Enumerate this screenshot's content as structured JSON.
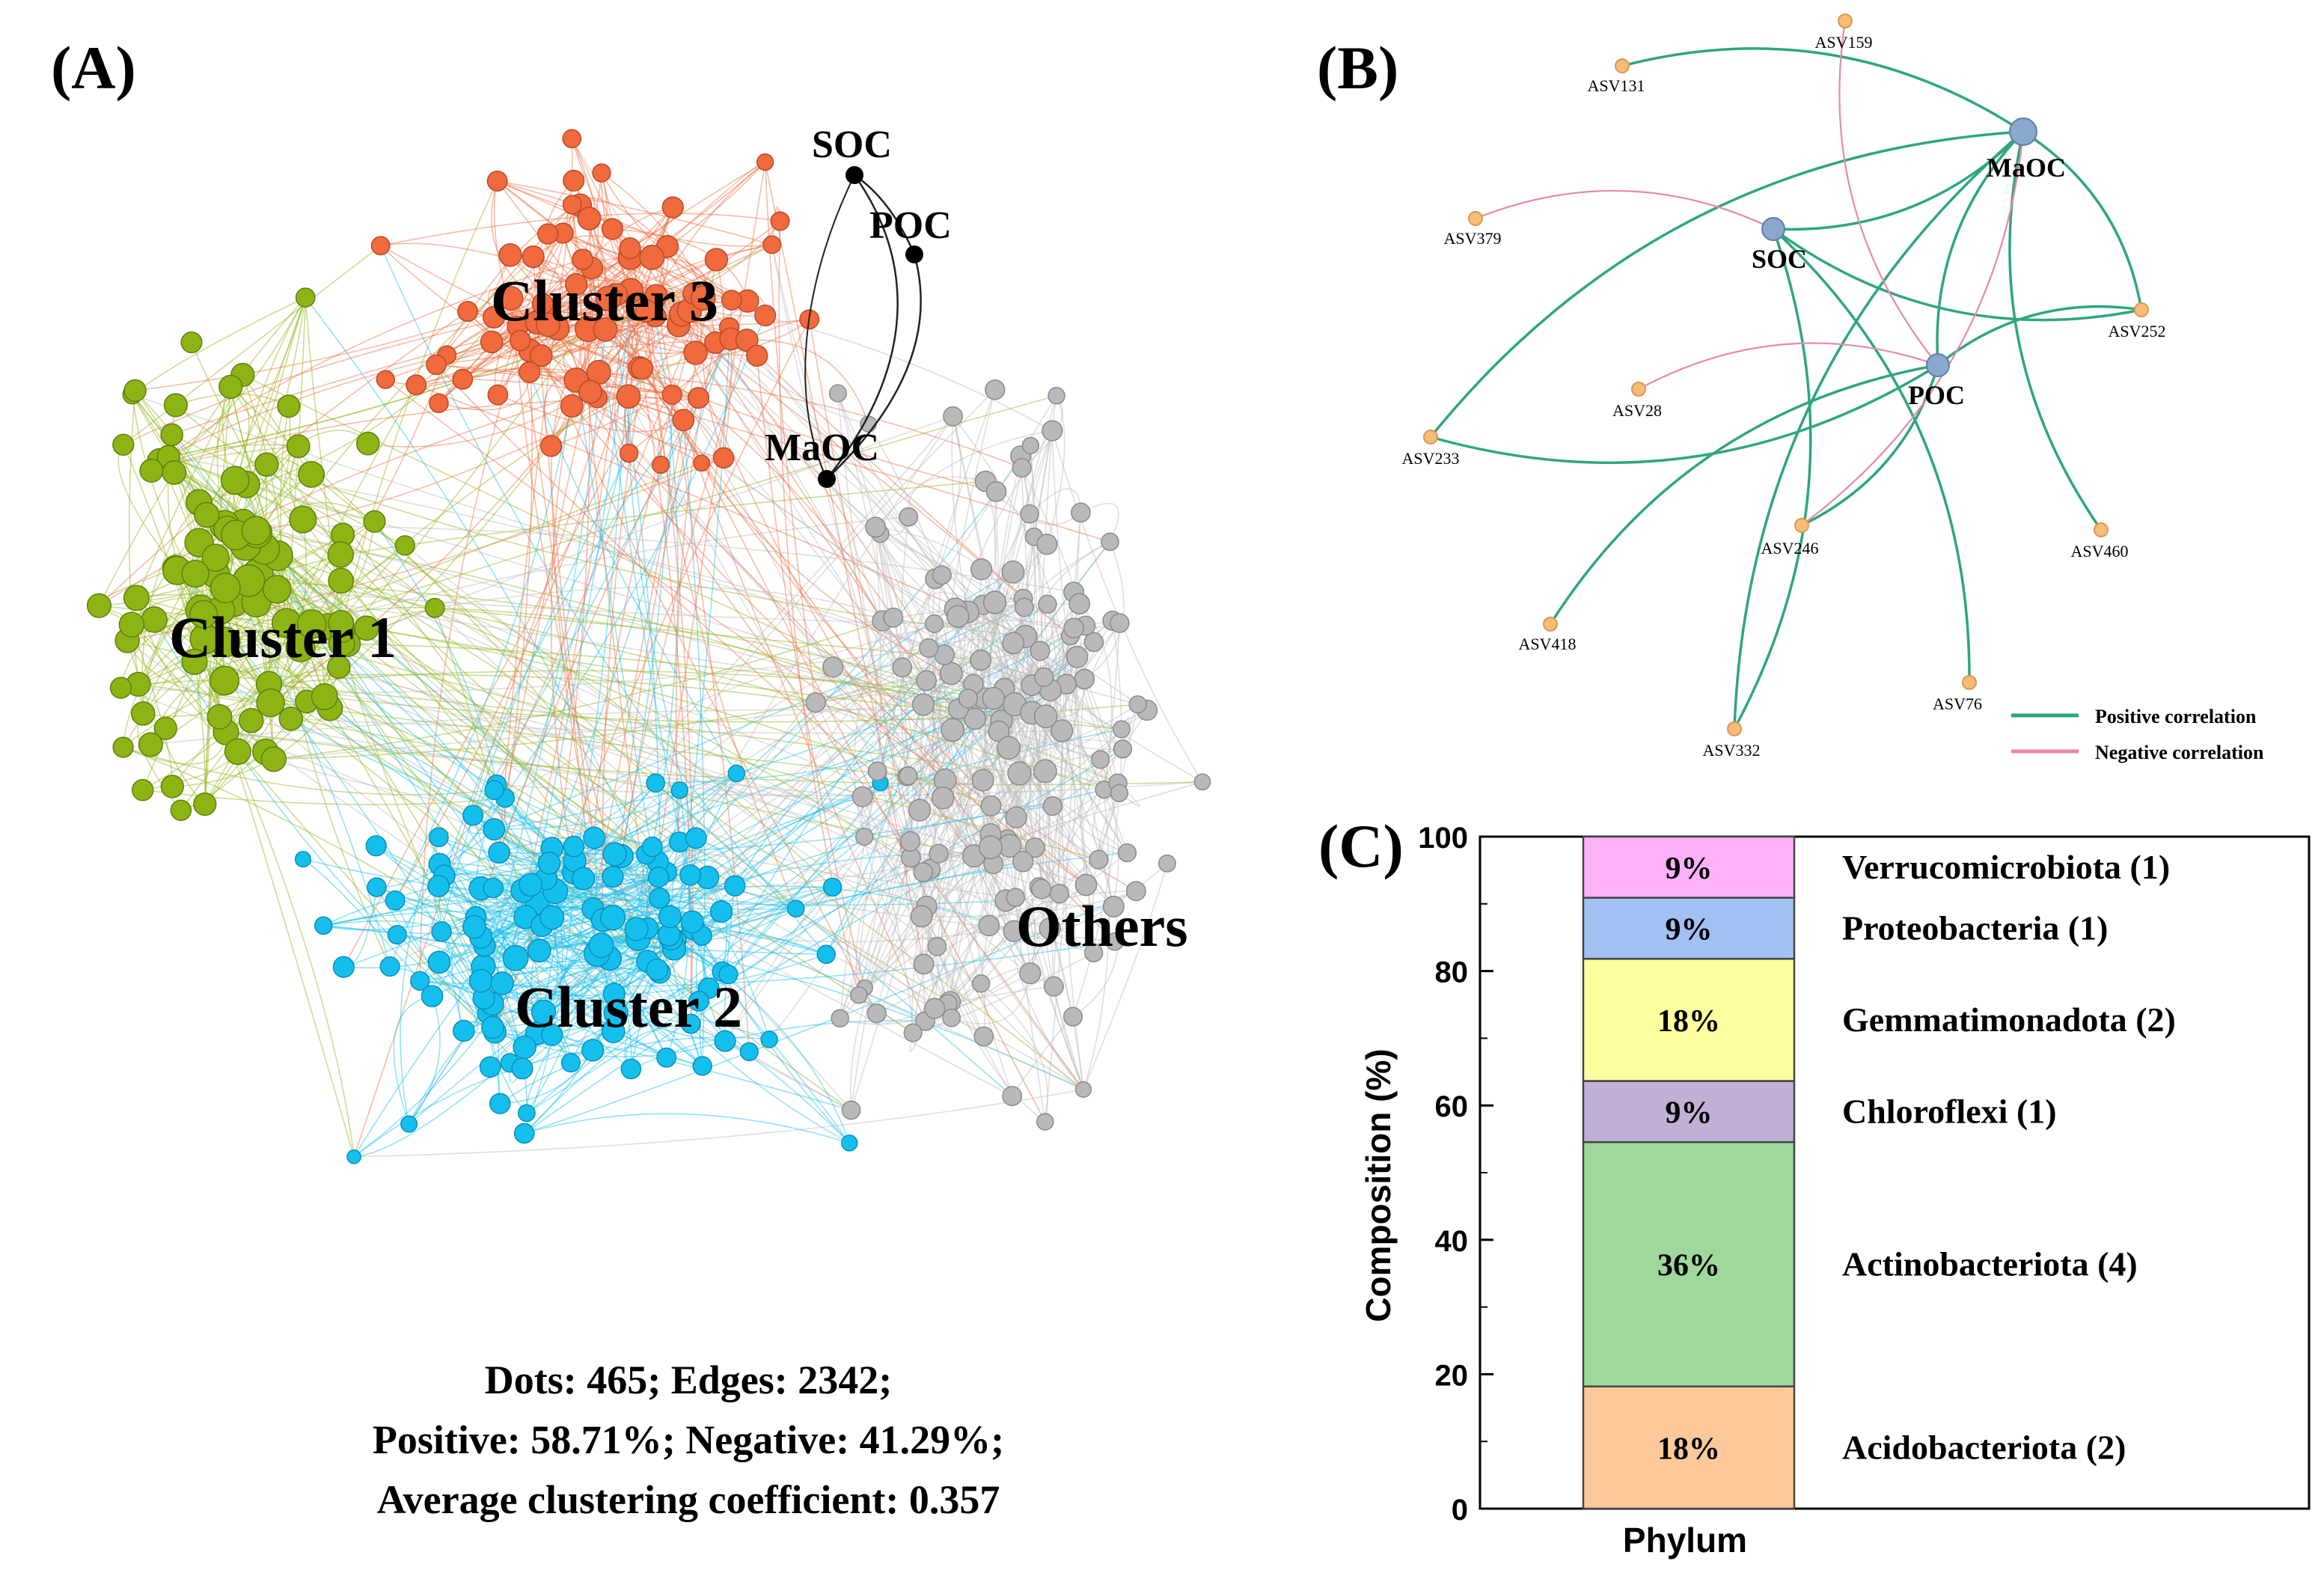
{
  "panels": {
    "a": "(A)",
    "b": "(B)",
    "c": "(C)"
  },
  "colors": {
    "cluster1": "#8db414",
    "cluster2": "#14bfee",
    "cluster3": "#f06a3e",
    "others": "#b9b9b9",
    "hub": "#000000",
    "positive": "#2ea77a",
    "negative": "#e98aa2",
    "bnode_small": "#f7bc78",
    "bnode_big": "#8aa7cc"
  },
  "chart_data": [
    {
      "type": "network",
      "panel": "A",
      "cluster_labels": [
        "Cluster 1",
        "Cluster 2",
        "Cluster 3",
        "Others"
      ],
      "hub_nodes": [
        "SOC",
        "POC",
        "MaOC"
      ],
      "stats": [
        "Dots: 465; Edges: 2342;",
        "Positive: 58.71%; Negative: 41.29%;",
        "Average clustering coefficient: 0.357"
      ],
      "dots": 465,
      "edges": 2342,
      "positive_pct": 58.71,
      "negative_pct": 41.29,
      "avg_clustering_coefficient": 0.357
    },
    {
      "type": "network",
      "panel": "B",
      "hub_nodes": [
        "SOC",
        "POC",
        "MaOC"
      ],
      "asv_nodes": [
        "ASV159",
        "ASV131",
        "ASV379",
        "ASV252",
        "ASV28",
        "ASV233",
        "ASV246",
        "ASV460",
        "ASV418",
        "ASV76",
        "ASV332"
      ],
      "edges": [
        {
          "from": "ASV131",
          "to": "MaOC",
          "sign": "positive"
        },
        {
          "from": "SOC",
          "to": "MaOC",
          "sign": "positive"
        },
        {
          "from": "POC",
          "to": "MaOC",
          "sign": "positive"
        },
        {
          "from": "ASV252",
          "to": "MaOC",
          "sign": "positive"
        },
        {
          "from": "ASV252",
          "to": "SOC",
          "sign": "positive"
        },
        {
          "from": "ASV252",
          "to": "POC",
          "sign": "positive"
        },
        {
          "from": "ASV233",
          "to": "MaOC",
          "sign": "positive"
        },
        {
          "from": "ASV233",
          "to": "POC",
          "sign": "positive"
        },
        {
          "from": "ASV418",
          "to": "POC",
          "sign": "positive"
        },
        {
          "from": "ASV332",
          "to": "SOC",
          "sign": "positive"
        },
        {
          "from": "ASV332",
          "to": "MaOC",
          "sign": "positive"
        },
        {
          "from": "ASV76",
          "to": "SOC",
          "sign": "positive"
        },
        {
          "from": "ASV460",
          "to": "MaOC",
          "sign": "positive"
        },
        {
          "from": "ASV246",
          "to": "POC",
          "sign": "positive"
        },
        {
          "from": "ASV379",
          "to": "SOC",
          "sign": "negative"
        },
        {
          "from": "ASV159",
          "to": "POC",
          "sign": "negative"
        },
        {
          "from": "ASV28",
          "to": "POC",
          "sign": "negative"
        },
        {
          "from": "ASV246",
          "to": "MaOC",
          "sign": "negative"
        }
      ],
      "legend": [
        "Positive correlation",
        "Negative correlation"
      ]
    },
    {
      "type": "bar",
      "stacked": true,
      "panel": "C",
      "categories": [
        "Phylum"
      ],
      "xlabel": "Phylum",
      "ylabel": "Composition (%)",
      "ylim": [
        0,
        100
      ],
      "yticks": [
        0,
        20,
        40,
        60,
        80,
        100
      ],
      "series": [
        {
          "name": "Acidobacteriota (2)",
          "values": [
            18
          ],
          "label": "18%",
          "color": "#fec99a"
        },
        {
          "name": "Actinobacteriota (4)",
          "values": [
            36
          ],
          "label": "36%",
          "color": "#9ed89b"
        },
        {
          "name": "Chloroflexi (1)",
          "values": [
            9
          ],
          "label": "9%",
          "color": "#c1afd6"
        },
        {
          "name": "Gemmatimonadota (2)",
          "values": [
            18
          ],
          "label": "18%",
          "color": "#fefe9f"
        },
        {
          "name": "Proteobacteria (1)",
          "values": [
            9
          ],
          "label": "9%",
          "color": "#a2c0f1"
        },
        {
          "name": "Verrucomicrobiota (1)",
          "values": [
            9
          ],
          "label": "9%",
          "color": "#fcb1f9"
        }
      ]
    }
  ]
}
